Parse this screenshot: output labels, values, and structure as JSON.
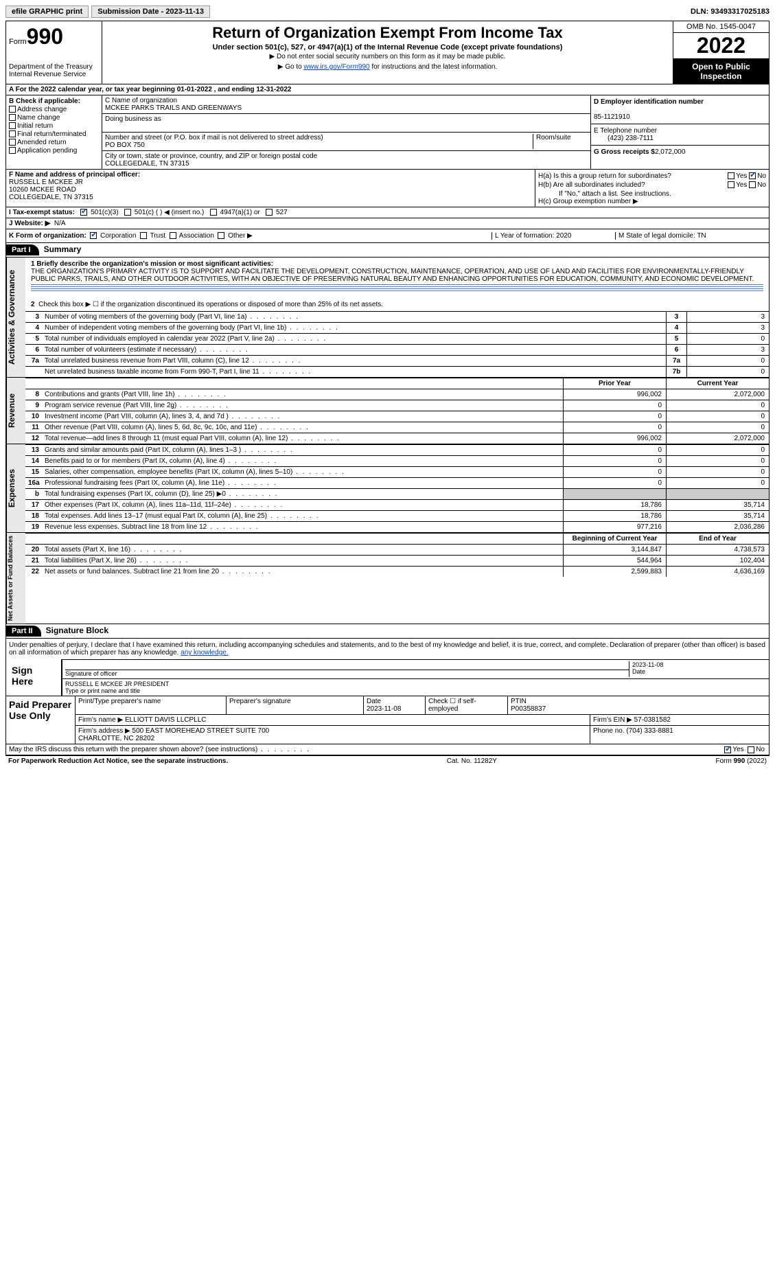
{
  "topbar": {
    "efile": "efile GRAPHIC print",
    "submission": "Submission Date - 2023-11-13",
    "dln": "DLN: 93493317025183"
  },
  "header": {
    "form_word": "Form",
    "form_num": "990",
    "dept": "Department of the Treasury\nInternal Revenue Service",
    "title": "Return of Organization Exempt From Income Tax",
    "subtitle": "Under section 501(c), 527, or 4947(a)(1) of the Internal Revenue Code (except private foundations)",
    "note1": "▶ Do not enter social security numbers on this form as it may be made public.",
    "note2_pre": "▶ Go to ",
    "note2_link": "www.irs.gov/Form990",
    "note2_post": " for instructions and the latest information.",
    "omb": "OMB No. 1545-0047",
    "year": "2022",
    "open": "Open to Public Inspection"
  },
  "row_a": "A  For the 2022 calendar year, or tax year beginning 01-01-2022    , and ending 12-31-2022",
  "col_b": {
    "title": "B Check if applicable:",
    "items": [
      "Address change",
      "Name change",
      "Initial return",
      "Final return/terminated",
      "Amended return",
      "Application pending"
    ]
  },
  "col_c": {
    "name_label": "C Name of organization",
    "name": "MCKEE PARKS TRAILS AND GREENWAYS",
    "dba_label": "Doing business as",
    "addr_label": "Number and street (or P.O. box if mail is not delivered to street address)",
    "room_label": "Room/suite",
    "addr": "PO BOX 750",
    "city_label": "City or town, state or province, country, and ZIP or foreign postal code",
    "city": "COLLEGEDALE, TN  37315"
  },
  "col_d": {
    "ein_label": "D Employer identification number",
    "ein": "85-1121910",
    "tel_label": "E Telephone number",
    "tel": "(423) 238-7111",
    "gross_label": "G Gross receipts $",
    "gross": "2,072,000"
  },
  "col_f": {
    "label": "F Name and address of principal officer:",
    "name": "RUSSELL E MCKEE JR",
    "addr1": "10260 MCKEE ROAD",
    "addr2": "COLLEGEDALE, TN  37315"
  },
  "col_h": {
    "ha": "H(a)  Is this a group return for subordinates?",
    "hb": "H(b)  Are all subordinates included?",
    "hb_note": "If \"No,\" attach a list. See instructions.",
    "hc": "H(c)  Group exemption number ▶"
  },
  "row_i": {
    "label": "I   Tax-exempt status:",
    "opts": [
      "501(c)(3)",
      "501(c) (  ) ◀ (insert no.)",
      "4947(a)(1) or",
      "527"
    ]
  },
  "row_j": {
    "label": "J   Website: ▶",
    "val": "N/A"
  },
  "row_k": {
    "label": "K Form of organization:",
    "opts": [
      "Corporation",
      "Trust",
      "Association",
      "Other ▶"
    ],
    "l": "L Year of formation: 2020",
    "m": "M State of legal domicile: TN"
  },
  "part1": {
    "label": "Part I",
    "title": "Summary",
    "q1_label": "1  Briefly describe the organization's mission or most significant activities:",
    "q1_text": "THE ORGANIZATION'S PRIMARY ACTIVITY IS TO SUPPORT AND FACILITATE THE DEVELOPMENT, CONSTRUCTION, MAINTENANCE, OPERATION, AND USE OF LAND AND FACILITIES FOR ENVIRONMENTALLY-FRIENDLY PUBLIC PARKS, TRAILS, AND OTHER OUTDOOR ACTIVITIES, WITH AN OBJECTIVE OF PRESERVING NATURAL BEAUTY AND ENHANCING OPPORTUNITIES FOR EDUCATION, COMMUNITY, AND ECONOMIC DEVELOPMENT.",
    "q2": "Check this box ▶ ☐ if the organization discontinued its operations or disposed of more than 25% of its net assets.",
    "vtab_ag": "Activities & Governance",
    "vtab_rev": "Revenue",
    "vtab_exp": "Expenses",
    "vtab_net": "Net Assets or Fund Balances",
    "gov_rows": [
      {
        "n": "3",
        "d": "Number of voting members of the governing body (Part VI, line 1a)",
        "cn": "3",
        "v": "3"
      },
      {
        "n": "4",
        "d": "Number of independent voting members of the governing body (Part VI, line 1b)",
        "cn": "4",
        "v": "3"
      },
      {
        "n": "5",
        "d": "Total number of individuals employed in calendar year 2022 (Part V, line 2a)",
        "cn": "5",
        "v": "0"
      },
      {
        "n": "6",
        "d": "Total number of volunteers (estimate if necessary)",
        "cn": "6",
        "v": "3"
      },
      {
        "n": "7a",
        "d": "Total unrelated business revenue from Part VIII, column (C), line 12",
        "cn": "7a",
        "v": "0"
      },
      {
        "n": "",
        "d": "Net unrelated business taxable income from Form 990-T, Part I, line 11",
        "cn": "7b",
        "v": "0"
      }
    ],
    "prior_hdr": "Prior Year",
    "curr_hdr": "Current Year",
    "rev_rows": [
      {
        "n": "8",
        "d": "Contributions and grants (Part VIII, line 1h)",
        "p": "996,002",
        "c": "2,072,000"
      },
      {
        "n": "9",
        "d": "Program service revenue (Part VIII, line 2g)",
        "p": "0",
        "c": "0"
      },
      {
        "n": "10",
        "d": "Investment income (Part VIII, column (A), lines 3, 4, and 7d )",
        "p": "0",
        "c": "0"
      },
      {
        "n": "11",
        "d": "Other revenue (Part VIII, column (A), lines 5, 6d, 8c, 9c, 10c, and 11e)",
        "p": "0",
        "c": "0"
      },
      {
        "n": "12",
        "d": "Total revenue—add lines 8 through 11 (must equal Part VIII, column (A), line 12)",
        "p": "996,002",
        "c": "2,072,000"
      }
    ],
    "exp_rows": [
      {
        "n": "13",
        "d": "Grants and similar amounts paid (Part IX, column (A), lines 1–3 )",
        "p": "0",
        "c": "0"
      },
      {
        "n": "14",
        "d": "Benefits paid to or for members (Part IX, column (A), line 4)",
        "p": "0",
        "c": "0"
      },
      {
        "n": "15",
        "d": "Salaries, other compensation, employee benefits (Part IX, column (A), lines 5–10)",
        "p": "0",
        "c": "0"
      },
      {
        "n": "16a",
        "d": "Professional fundraising fees (Part IX, column (A), line 11e)",
        "p": "0",
        "c": "0"
      },
      {
        "n": "b",
        "d": "Total fundraising expenses (Part IX, column (D), line 25) ▶0",
        "p": "",
        "c": "",
        "gray": true
      },
      {
        "n": "17",
        "d": "Other expenses (Part IX, column (A), lines 11a–11d, 11f–24e)",
        "p": "18,786",
        "c": "35,714"
      },
      {
        "n": "18",
        "d": "Total expenses. Add lines 13–17 (must equal Part IX, column (A), line 25)",
        "p": "18,786",
        "c": "35,714"
      },
      {
        "n": "19",
        "d": "Revenue less expenses. Subtract line 18 from line 12",
        "p": "977,216",
        "c": "2,036,286"
      }
    ],
    "net_hdr_p": "Beginning of Current Year",
    "net_hdr_c": "End of Year",
    "net_rows": [
      {
        "n": "20",
        "d": "Total assets (Part X, line 16)",
        "p": "3,144,847",
        "c": "4,738,573"
      },
      {
        "n": "21",
        "d": "Total liabilities (Part X, line 26)",
        "p": "544,964",
        "c": "102,404"
      },
      {
        "n": "22",
        "d": "Net assets or fund balances. Subtract line 21 from line 20",
        "p": "2,599,883",
        "c": "4,636,169"
      }
    ]
  },
  "part2": {
    "label": "Part II",
    "title": "Signature Block",
    "decl": "Under penalties of perjury, I declare that I have examined this return, including accompanying schedules and statements, and to the best of my knowledge and belief, it is true, correct, and complete. Declaration of preparer (other than officer) is based on all information of which preparer has any knowledge.",
    "sign_here": "Sign Here",
    "sig_officer": "Signature of officer",
    "sig_date": "2023-11-08",
    "date_lbl": "Date",
    "officer_name": "RUSSELL E MCKEE JR  PRESIDENT",
    "officer_lbl": "Type or print name and title",
    "paid": "Paid Preparer Use Only",
    "prep_name_lbl": "Print/Type preparer's name",
    "prep_sig_lbl": "Preparer's signature",
    "prep_date_lbl": "Date",
    "prep_date": "2023-11-08",
    "prep_check_lbl": "Check ☐ if self-employed",
    "ptin_lbl": "PTIN",
    "ptin": "P00358837",
    "firm_name_lbl": "Firm's name    ▶",
    "firm_name": "ELLIOTT DAVIS LLCPLLC",
    "firm_ein_lbl": "Firm's EIN ▶",
    "firm_ein": "57-0381582",
    "firm_addr_lbl": "Firm's address ▶",
    "firm_addr": "500 EAST MOREHEAD STREET SUITE 700\nCHARLOTTE, NC  28202",
    "phone_lbl": "Phone no.",
    "phone": "(704) 333-8881",
    "may_irs": "May the IRS discuss this return with the preparer shown above? (see instructions)"
  },
  "footer": {
    "left": "For Paperwork Reduction Act Notice, see the separate instructions.",
    "mid": "Cat. No. 11282Y",
    "right": "Form 990 (2022)"
  }
}
